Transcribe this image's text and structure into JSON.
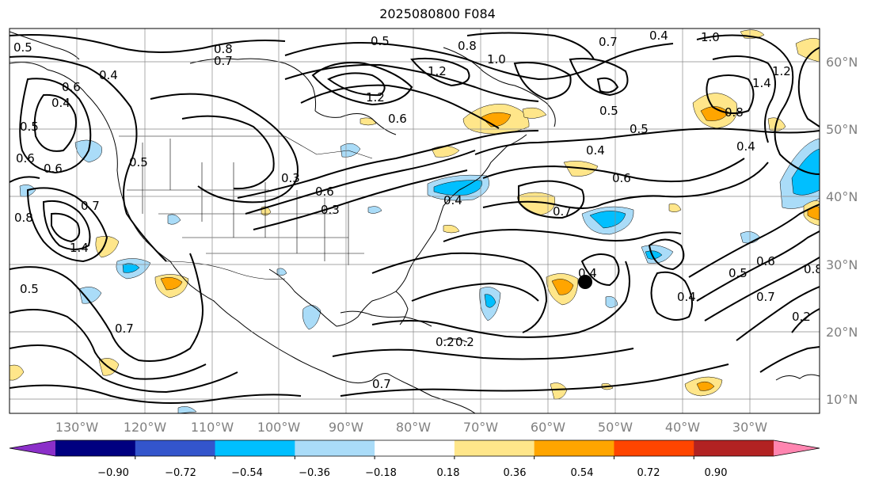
{
  "title": "2025080800 F084",
  "map": {
    "latitude_labels": [
      "60°N",
      "50°N",
      "40°N",
      "30°N",
      "20°N",
      "10°N"
    ],
    "longitude_labels": [
      "130°W",
      "120°W",
      "110°W",
      "100°W",
      "90°W",
      "80°W",
      "70°W",
      "60°W",
      "50°W",
      "40°W",
      "30°W"
    ],
    "contour_labels": [
      "0.8",
      "0.5",
      "0.8",
      "1.0",
      "0.7",
      "0.4",
      "0.7",
      "0.5",
      "0.4",
      "1.0",
      "1.2",
      "1.2",
      "0.6",
      "0.6",
      "0.4",
      "0.5",
      "0.5",
      "0.5",
      "0.4",
      "0.6",
      "0.6",
      "0.3",
      "0.6",
      "0.3",
      "0.7",
      "0.6",
      "0.4",
      "0.7",
      "1.4",
      "0.8",
      "0.4",
      "0.5",
      "0.6",
      "0.8",
      "0.7",
      "0.2",
      "0.2",
      "0.4",
      "0.4",
      "0.5",
      "0.7",
      "0.5",
      "1.4",
      "1.2",
      "0.8",
      "0.2",
      "0.7"
    ],
    "marker": "black-dot"
  },
  "colorbar": {
    "ticks": [
      "−0.90",
      "−0.72",
      "−0.54",
      "−0.36",
      "−0.18",
      "0.18",
      "0.36",
      "0.54",
      "0.72",
      "0.90"
    ],
    "colors": [
      "#8b2fc9",
      "#000080",
      "#3355cc",
      "#00bfff",
      "#aadcf8",
      "#ffffff",
      "#ffe68a",
      "#ffa500",
      "#ff4500",
      "#b22222",
      "#ff85b0"
    ]
  }
}
